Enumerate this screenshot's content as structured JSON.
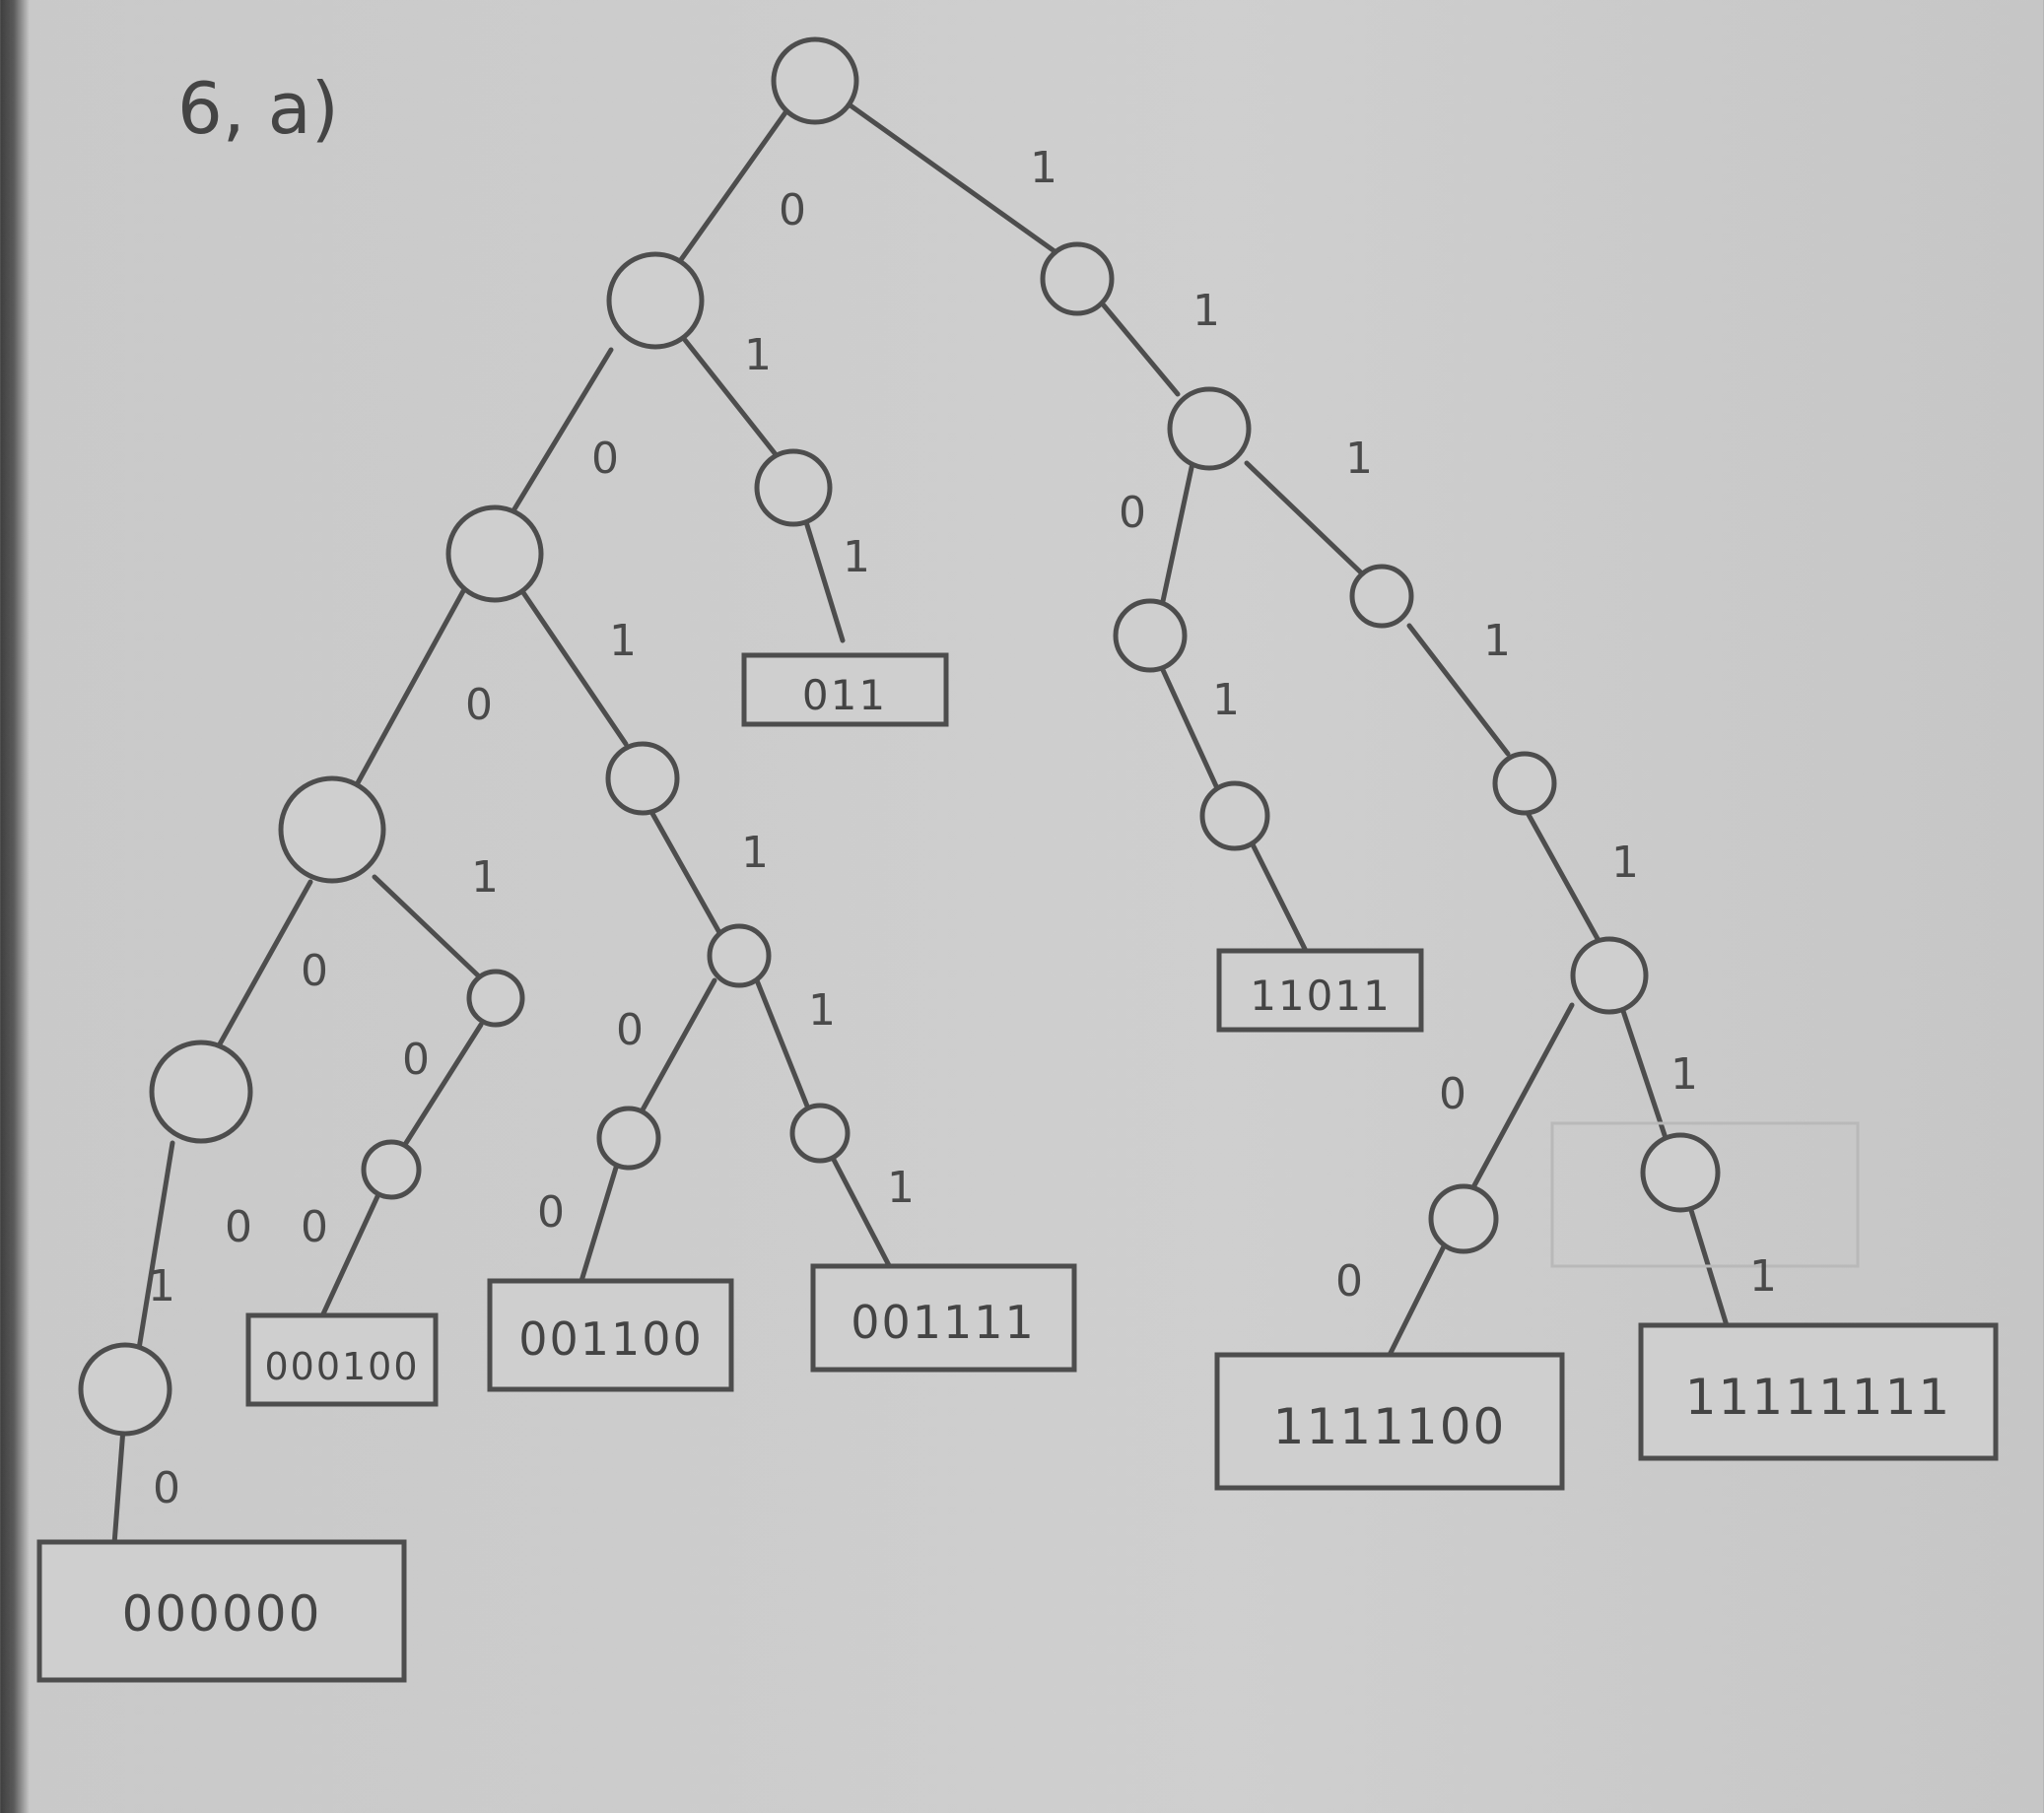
{
  "title": "6, a)",
  "edge_labels": {
    "e1": "0",
    "e2": "1",
    "e3": "0",
    "e4": "1",
    "e5": "0",
    "e6": "1",
    "e7": "0",
    "e8": "1",
    "e9": "1",
    "e10": "0",
    "e11": "1",
    "e12": "0",
    "e13": "1",
    "e14": "0",
    "e15": "0",
    "e16": "0",
    "e17": "0",
    "e18": "1",
    "e19": "0",
    "e20": "1",
    "e21": "1",
    "e22": "1",
    "e23": "1",
    "e24": "0",
    "e25": "1",
    "e26": "0",
    "e27": "1",
    "e28": "1",
    "e29": "1"
  },
  "leaves": {
    "l1": "000000",
    "l2": "000100",
    "l3": "001100",
    "l4": "001111",
    "l5": "011",
    "l6": "11011",
    "l7": "1111100",
    "l8": "11111111"
  }
}
